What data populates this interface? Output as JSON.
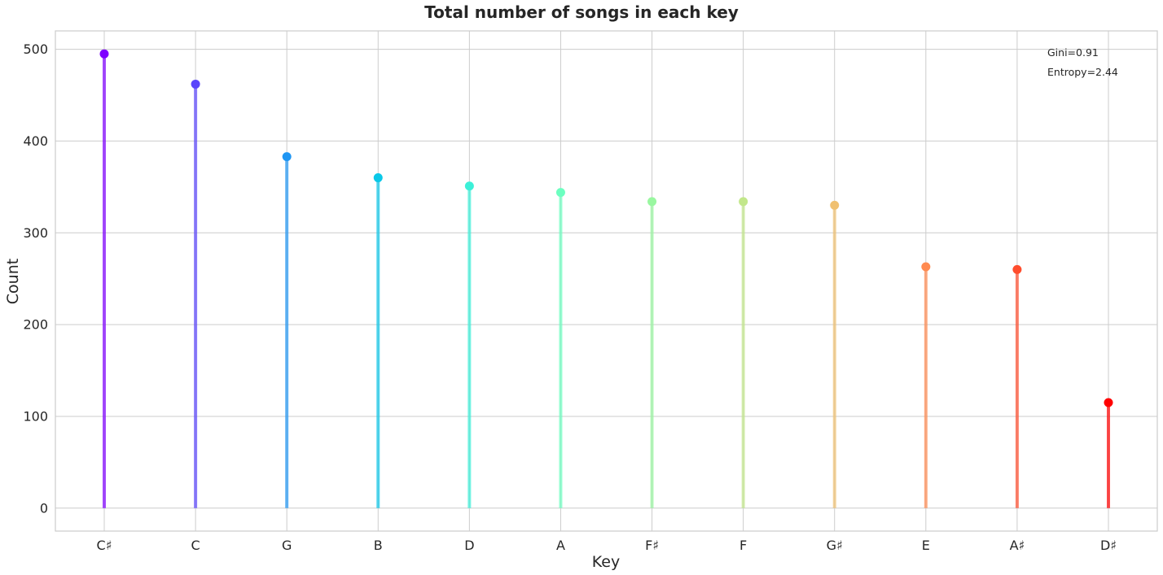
{
  "chart_data": {
    "type": "lollipop",
    "title": "Total number of songs in each key",
    "xlabel": "Key",
    "ylabel": "Count",
    "categories": [
      "C♯",
      "C",
      "G",
      "B",
      "D",
      "A",
      "F♯",
      "F",
      "G♯",
      "E",
      "A♯",
      "D♯"
    ],
    "values": [
      495,
      462,
      383,
      360,
      351,
      344,
      334,
      334,
      330,
      263,
      260,
      115
    ],
    "colors": [
      "#7f00ff",
      "#5a45fb",
      "#1f96f3",
      "#0ac8e8",
      "#3cf0d8",
      "#6cffc0",
      "#99f7a0",
      "#c2e78a",
      "#f0c070",
      "#ff8a50",
      "#ff4d2d",
      "#ff0000"
    ],
    "ylim": [
      -25,
      520
    ],
    "yticks": [
      0,
      100,
      200,
      300,
      400,
      500
    ],
    "grid": true,
    "annotations": [
      "Gini=0.91",
      "Entropy=2.44"
    ]
  }
}
